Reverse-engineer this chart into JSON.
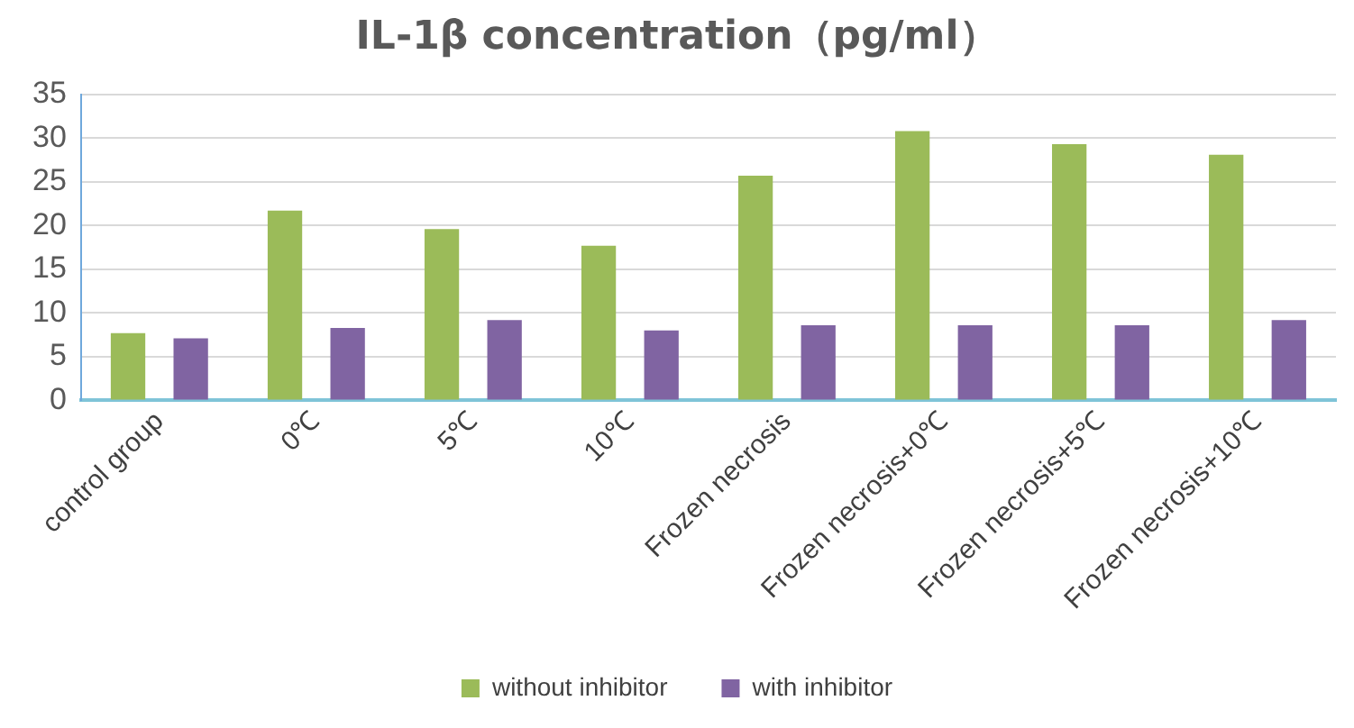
{
  "chart_data": {
    "type": "bar",
    "title": "IL-1β concentration（pg/ml）",
    "categories": [
      "control group",
      "0℃",
      "5℃",
      "10℃",
      "Frozen necrosis",
      "Frozen necrosis+0℃",
      "Frozen necrosis+5℃",
      "Frozen necrosis+10℃"
    ],
    "series": [
      {
        "name": "without inhibitor",
        "color": "#9bbb59",
        "values": [
          7.7,
          21.7,
          19.6,
          17.7,
          25.7,
          30.8,
          29.3,
          28.1
        ]
      },
      {
        "name": "with inhibitor",
        "color": "#8064a2",
        "values": [
          7.1,
          8.3,
          9.2,
          8.0,
          8.6,
          8.6,
          8.6,
          9.2
        ]
      }
    ],
    "ylim": [
      0,
      35
    ],
    "yticks": [
      0,
      5,
      10,
      15,
      20,
      25,
      30,
      35
    ],
    "grid": "y",
    "legend": "bottom"
  }
}
